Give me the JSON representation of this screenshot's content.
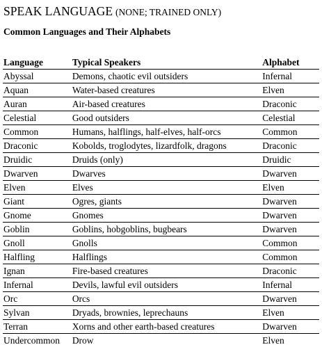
{
  "heading": {
    "main": "SPEAK LANGUAGE",
    "sub": "(NONE; TRAINED ONLY)"
  },
  "table_title": "Common Languages and Their Alphabets",
  "columns": [
    "Language",
    "Typical Speakers",
    "Alphabet"
  ],
  "rows": [
    [
      "Abyssal",
      "Demons, chaotic evil outsiders",
      "Infernal"
    ],
    [
      "Aquan",
      "Water-based creatures",
      "Elven"
    ],
    [
      "Auran",
      "Air-based creatures",
      "Draconic"
    ],
    [
      "Celestial",
      "Good outsiders",
      "Celestial"
    ],
    [
      "Common",
      "Humans, halflings, half-elves, half-orcs",
      "Common"
    ],
    [
      "Draconic",
      "Kobolds, troglodytes, lizardfolk, dragons",
      "Draconic"
    ],
    [
      "Druidic",
      "Druids (only)",
      "Druidic"
    ],
    [
      "Dwarven",
      "Dwarves",
      "Dwarven"
    ],
    [
      "Elven",
      "Elves",
      "Elven"
    ],
    [
      "Giant",
      "Ogres, giants",
      "Dwarven"
    ],
    [
      "Gnome",
      "Gnomes",
      "Dwarven"
    ],
    [
      "Goblin",
      "Goblins, hobgoblins, bugbears",
      "Dwarven"
    ],
    [
      "Gnoll",
      "Gnolls",
      "Common"
    ],
    [
      "Halfling",
      "Halflings",
      "Common"
    ],
    [
      "Ignan",
      "Fire-based creatures",
      "Draconic"
    ],
    [
      "Infernal",
      "Devils, lawful evil outsiders",
      "Infernal"
    ],
    [
      "Orc",
      "Orcs",
      "Dwarven"
    ],
    [
      "Sylvan",
      "Dryads, brownies, leprechauns",
      "Elven"
    ],
    [
      "Terran",
      "Xorns and other earth-based creatures",
      "Dwarven"
    ],
    [
      "Undercommon",
      "Drow",
      "Elven"
    ]
  ]
}
